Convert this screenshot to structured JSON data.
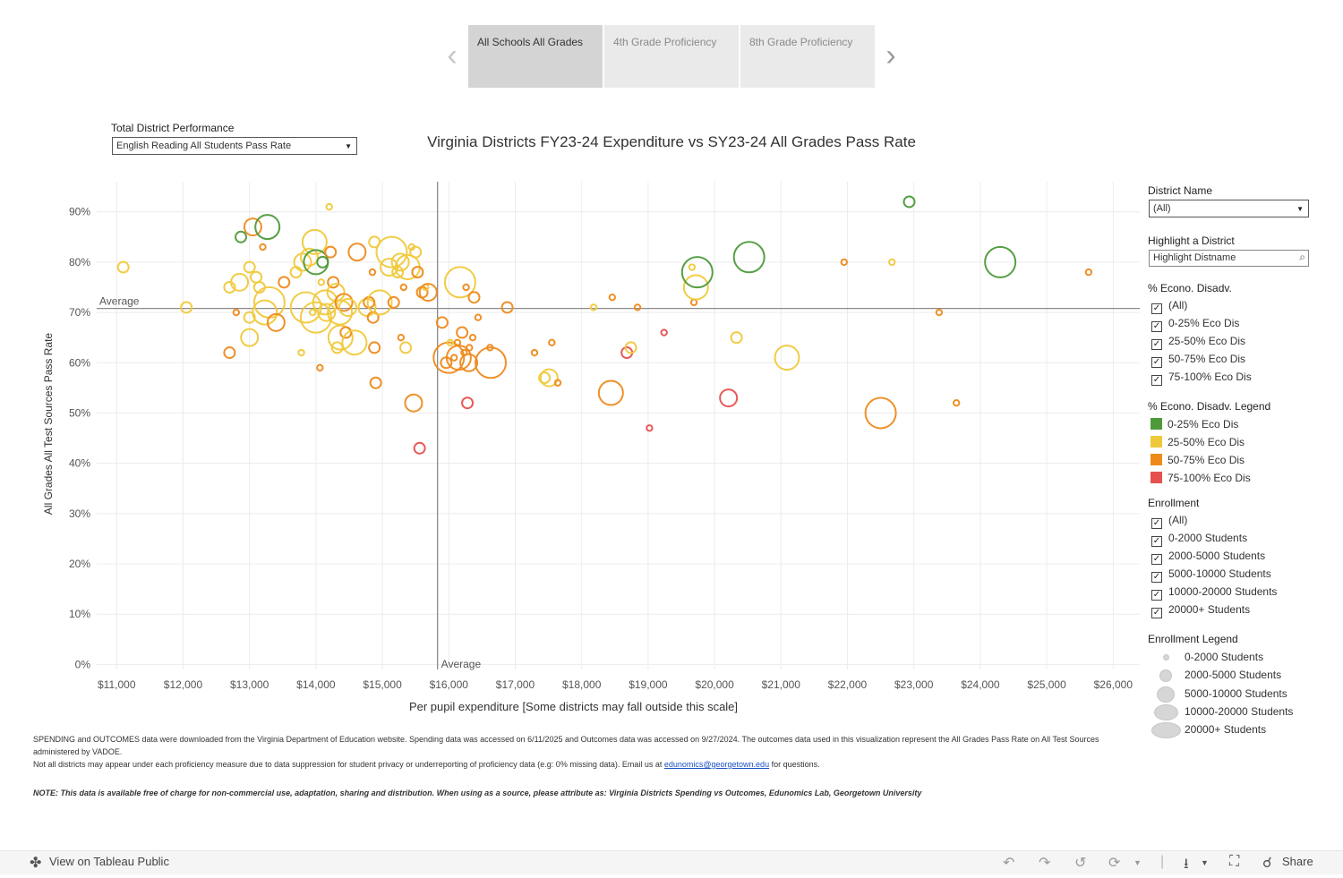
{
  "story": {
    "tabs": [
      "All Schools All Grades",
      "4th Grade Proficiency",
      "8th Grade Proficiency"
    ],
    "active_index": 0,
    "prev_icon": "chevron-left-icon",
    "next_icon": "chevron-right-icon"
  },
  "controls": {
    "performance_label": "Total District Performance",
    "performance_value": "English Reading All Students Pass Rate",
    "district_label": "District Name",
    "district_value": "(All)",
    "highlight_label": "Highlight a District",
    "highlight_placeholder": "Highlight Distname"
  },
  "eco_filter": {
    "title": "% Econo. Disadv.",
    "options": [
      "(All)",
      "0-25% Eco Dis",
      "25-50% Eco Dis",
      "50-75% Eco Dis",
      "75-100% Eco Dis"
    ]
  },
  "eco_legend": {
    "title": "% Econo. Disadv. Legend",
    "items": [
      {
        "label": "0-25% Eco Dis",
        "color": "#4e9a3b"
      },
      {
        "label": "25-50% Eco Dis",
        "color": "#f0c93b"
      },
      {
        "label": "50-75% Eco Dis",
        "color": "#ee8a1c"
      },
      {
        "label": "75-100% Eco Dis",
        "color": "#e6514f"
      }
    ]
  },
  "enrollment_filter": {
    "title": "Enrollment",
    "options": [
      "(All)",
      "0-2000 Students",
      "2000-5000 Students",
      "5000-10000 Students",
      "10000-20000 Students",
      "20000+ Students"
    ]
  },
  "enrollment_legend": {
    "title": "Enrollment Legend",
    "items": [
      "0-2000 Students",
      "2000-5000 Students",
      "5000-10000 Students",
      "10000-20000 Students",
      "20000+ Students"
    ]
  },
  "chart_data": {
    "type": "scatter",
    "title": "Virginia Districts FY23-24 Expenditure vs SY23-24 All Grades Pass Rate",
    "xlabel": "Per pupil expenditure [Some districts may fall outside this scale]",
    "ylabel": "All Grades All Test Sources Pass Rate",
    "xlim": [
      10700,
      26400
    ],
    "ylim": [
      -1,
      96
    ],
    "x_ticks": [
      11000,
      12000,
      13000,
      14000,
      15000,
      16000,
      17000,
      18000,
      19000,
      20000,
      21000,
      22000,
      23000,
      24000,
      25000,
      26000
    ],
    "x_tick_labels": [
      "$11,000",
      "$12,000",
      "$13,000",
      "$14,000",
      "$15,000",
      "$16,000",
      "$17,000",
      "$18,000",
      "$19,000",
      "$20,000",
      "$21,000",
      "$22,000",
      "$23,000",
      "$24,000",
      "$25,000",
      "$26,000"
    ],
    "y_ticks": [
      0,
      10,
      20,
      30,
      40,
      50,
      60,
      70,
      80,
      90
    ],
    "y_tick_labels": [
      "0%",
      "10%",
      "20%",
      "30%",
      "40%",
      "50%",
      "60%",
      "70%",
      "80%",
      "90%"
    ],
    "avg_x": 15830,
    "avg_y": 70.8,
    "avg_label": "Average",
    "grid": true,
    "categories": [
      "0-25% Eco Dis",
      "25-50% Eco Dis",
      "50-75% Eco Dis",
      "75-100% Eco Dis"
    ],
    "points": [
      {
        "x": 11100,
        "y": 79,
        "cat": 1,
        "size": 1
      },
      {
        "x": 12050,
        "y": 71,
        "cat": 1,
        "size": 1
      },
      {
        "x": 12700,
        "y": 75,
        "cat": 1,
        "size": 1
      },
      {
        "x": 12700,
        "y": 62,
        "cat": 2,
        "size": 1
      },
      {
        "x": 12800,
        "y": 70,
        "cat": 2,
        "size": 0
      },
      {
        "x": 12850,
        "y": 76,
        "cat": 1,
        "size": 2
      },
      {
        "x": 12870,
        "y": 85,
        "cat": 0,
        "size": 1
      },
      {
        "x": 13000,
        "y": 79,
        "cat": 1,
        "size": 1
      },
      {
        "x": 13000,
        "y": 65,
        "cat": 1,
        "size": 2
      },
      {
        "x": 13000,
        "y": 69,
        "cat": 1,
        "size": 1
      },
      {
        "x": 13050,
        "y": 87,
        "cat": 2,
        "size": 2
      },
      {
        "x": 13100,
        "y": 77,
        "cat": 1,
        "size": 1
      },
      {
        "x": 13150,
        "y": 75,
        "cat": 1,
        "size": 1
      },
      {
        "x": 13200,
        "y": 83,
        "cat": 2,
        "size": 0
      },
      {
        "x": 13230,
        "y": 70,
        "cat": 1,
        "size": 3
      },
      {
        "x": 13270,
        "y": 87,
        "cat": 0,
        "size": 3
      },
      {
        "x": 13300,
        "y": 72,
        "cat": 1,
        "size": 4
      },
      {
        "x": 13400,
        "y": 68,
        "cat": 2,
        "size": 2
      },
      {
        "x": 13520,
        "y": 76,
        "cat": 2,
        "size": 1
      },
      {
        "x": 13700,
        "y": 78,
        "cat": 1,
        "size": 1
      },
      {
        "x": 13780,
        "y": 62,
        "cat": 1,
        "size": 0
      },
      {
        "x": 13800,
        "y": 80,
        "cat": 1,
        "size": 2
      },
      {
        "x": 13850,
        "y": 71,
        "cat": 1,
        "size": 4
      },
      {
        "x": 13900,
        "y": 81,
        "cat": 1,
        "size": 2
      },
      {
        "x": 13950,
        "y": 70,
        "cat": 1,
        "size": 0
      },
      {
        "x": 13980,
        "y": 84,
        "cat": 1,
        "size": 3
      },
      {
        "x": 14000,
        "y": 80,
        "cat": 0,
        "size": 3
      },
      {
        "x": 14000,
        "y": 69,
        "cat": 1,
        "size": 4
      },
      {
        "x": 14060,
        "y": 59,
        "cat": 2,
        "size": 0
      },
      {
        "x": 14080,
        "y": 76,
        "cat": 1,
        "size": 0
      },
      {
        "x": 14100,
        "y": 80,
        "cat": 0,
        "size": 1
      },
      {
        "x": 14140,
        "y": 72,
        "cat": 1,
        "size": 3
      },
      {
        "x": 14160,
        "y": 70,
        "cat": 1,
        "size": 2
      },
      {
        "x": 14200,
        "y": 91,
        "cat": 1,
        "size": 0
      },
      {
        "x": 14220,
        "y": 82,
        "cat": 2,
        "size": 1
      },
      {
        "x": 14260,
        "y": 76,
        "cat": 2,
        "size": 1
      },
      {
        "x": 14300,
        "y": 74,
        "cat": 1,
        "size": 2
      },
      {
        "x": 14320,
        "y": 63,
        "cat": 1,
        "size": 1
      },
      {
        "x": 14360,
        "y": 70,
        "cat": 1,
        "size": 3
      },
      {
        "x": 14370,
        "y": 65,
        "cat": 1,
        "size": 3
      },
      {
        "x": 14420,
        "y": 72,
        "cat": 2,
        "size": 2
      },
      {
        "x": 14450,
        "y": 66,
        "cat": 2,
        "size": 1
      },
      {
        "x": 14480,
        "y": 71,
        "cat": 1,
        "size": 2
      },
      {
        "x": 14580,
        "y": 64,
        "cat": 1,
        "size": 3
      },
      {
        "x": 14620,
        "y": 82,
        "cat": 2,
        "size": 2
      },
      {
        "x": 14770,
        "y": 71,
        "cat": 1,
        "size": 2
      },
      {
        "x": 14800,
        "y": 72,
        "cat": 2,
        "size": 1
      },
      {
        "x": 14850,
        "y": 78,
        "cat": 2,
        "size": 0
      },
      {
        "x": 14860,
        "y": 69,
        "cat": 2,
        "size": 1
      },
      {
        "x": 14880,
        "y": 84,
        "cat": 1,
        "size": 1
      },
      {
        "x": 14880,
        "y": 63,
        "cat": 2,
        "size": 1
      },
      {
        "x": 14900,
        "y": 56,
        "cat": 2,
        "size": 1
      },
      {
        "x": 14960,
        "y": 72,
        "cat": 1,
        "size": 3
      },
      {
        "x": 15100,
        "y": 79,
        "cat": 1,
        "size": 2
      },
      {
        "x": 15140,
        "y": 82,
        "cat": 1,
        "size": 4
      },
      {
        "x": 15170,
        "y": 72,
        "cat": 2,
        "size": 1
      },
      {
        "x": 15230,
        "y": 78,
        "cat": 1,
        "size": 1
      },
      {
        "x": 15270,
        "y": 80,
        "cat": 1,
        "size": 2
      },
      {
        "x": 15280,
        "y": 65,
        "cat": 2,
        "size": 0
      },
      {
        "x": 15320,
        "y": 75,
        "cat": 2,
        "size": 0
      },
      {
        "x": 15350,
        "y": 63,
        "cat": 1,
        "size": 1
      },
      {
        "x": 15380,
        "y": 79,
        "cat": 1,
        "size": 3
      },
      {
        "x": 15440,
        "y": 83,
        "cat": 1,
        "size": 0
      },
      {
        "x": 15470,
        "y": 52,
        "cat": 2,
        "size": 2
      },
      {
        "x": 15500,
        "y": 82,
        "cat": 1,
        "size": 1
      },
      {
        "x": 15530,
        "y": 78,
        "cat": 2,
        "size": 1
      },
      {
        "x": 15560,
        "y": 43,
        "cat": 3,
        "size": 1
      },
      {
        "x": 15600,
        "y": 74,
        "cat": 2,
        "size": 1
      },
      {
        "x": 15650,
        "y": 75,
        "cat": 1,
        "size": 0
      },
      {
        "x": 15690,
        "y": 74,
        "cat": 2,
        "size": 2
      },
      {
        "x": 15900,
        "y": 68,
        "cat": 2,
        "size": 1
      },
      {
        "x": 15960,
        "y": 60,
        "cat": 2,
        "size": 1
      },
      {
        "x": 16000,
        "y": 61,
        "cat": 2,
        "size": 4
      },
      {
        "x": 16020,
        "y": 64,
        "cat": 1,
        "size": 0
      },
      {
        "x": 16080,
        "y": 61,
        "cat": 2,
        "size": 0
      },
      {
        "x": 16130,
        "y": 64,
        "cat": 2,
        "size": 0
      },
      {
        "x": 16150,
        "y": 61,
        "cat": 2,
        "size": 3
      },
      {
        "x": 16170,
        "y": 76,
        "cat": 1,
        "size": 4
      },
      {
        "x": 16200,
        "y": 66,
        "cat": 2,
        "size": 1
      },
      {
        "x": 16230,
        "y": 62,
        "cat": 2,
        "size": 0
      },
      {
        "x": 16260,
        "y": 75,
        "cat": 2,
        "size": 0
      },
      {
        "x": 16280,
        "y": 52,
        "cat": 3,
        "size": 1
      },
      {
        "x": 16300,
        "y": 60,
        "cat": 2,
        "size": 2
      },
      {
        "x": 16310,
        "y": 63,
        "cat": 2,
        "size": 0
      },
      {
        "x": 16360,
        "y": 65,
        "cat": 2,
        "size": 0
      },
      {
        "x": 16380,
        "y": 73,
        "cat": 2,
        "size": 1
      },
      {
        "x": 16440,
        "y": 69,
        "cat": 2,
        "size": 0
      },
      {
        "x": 16620,
        "y": 63,
        "cat": 2,
        "size": 0
      },
      {
        "x": 16630,
        "y": 60,
        "cat": 2,
        "size": 4
      },
      {
        "x": 16880,
        "y": 71,
        "cat": 2,
        "size": 1
      },
      {
        "x": 17290,
        "y": 62,
        "cat": 2,
        "size": 0
      },
      {
        "x": 17440,
        "y": 57,
        "cat": 1,
        "size": 1
      },
      {
        "x": 17510,
        "y": 57,
        "cat": 1,
        "size": 2
      },
      {
        "x": 17550,
        "y": 64,
        "cat": 2,
        "size": 0
      },
      {
        "x": 17640,
        "y": 56,
        "cat": 2,
        "size": 0
      },
      {
        "x": 18180,
        "y": 71,
        "cat": 1,
        "size": 0
      },
      {
        "x": 18440,
        "y": 54,
        "cat": 2,
        "size": 3
      },
      {
        "x": 18460,
        "y": 73,
        "cat": 2,
        "size": 0
      },
      {
        "x": 18680,
        "y": 62,
        "cat": 3,
        "size": 1
      },
      {
        "x": 18740,
        "y": 63,
        "cat": 1,
        "size": 1
      },
      {
        "x": 18840,
        "y": 71,
        "cat": 2,
        "size": 0
      },
      {
        "x": 19020,
        "y": 47,
        "cat": 3,
        "size": 0
      },
      {
        "x": 19240,
        "y": 66,
        "cat": 3,
        "size": 0
      },
      {
        "x": 19660,
        "y": 79,
        "cat": 1,
        "size": 0
      },
      {
        "x": 19690,
        "y": 72,
        "cat": 2,
        "size": 0
      },
      {
        "x": 19720,
        "y": 75,
        "cat": 1,
        "size": 3
      },
      {
        "x": 19740,
        "y": 78,
        "cat": 0,
        "size": 4
      },
      {
        "x": 20210,
        "y": 53,
        "cat": 3,
        "size": 2
      },
      {
        "x": 20330,
        "y": 65,
        "cat": 1,
        "size": 1
      },
      {
        "x": 20520,
        "y": 81,
        "cat": 0,
        "size": 4
      },
      {
        "x": 21090,
        "y": 61,
        "cat": 1,
        "size": 3
      },
      {
        "x": 21950,
        "y": 80,
        "cat": 2,
        "size": 0
      },
      {
        "x": 22500,
        "y": 50,
        "cat": 2,
        "size": 4
      },
      {
        "x": 22670,
        "y": 80,
        "cat": 1,
        "size": 0
      },
      {
        "x": 22930,
        "y": 92,
        "cat": 0,
        "size": 1
      },
      {
        "x": 23380,
        "y": 70,
        "cat": 2,
        "size": 0
      },
      {
        "x": 23640,
        "y": 52,
        "cat": 2,
        "size": 0
      },
      {
        "x": 24300,
        "y": 80,
        "cat": 0,
        "size": 4
      },
      {
        "x": 25630,
        "y": 78,
        "cat": 2,
        "size": 0
      }
    ]
  },
  "footer": {
    "line1": "SPENDING and OUTCOMES data were downloaded from the Virginia Department of Education website. Spending data was accessed on 6/11/2025 and Outcomes data was accessed on 9/27/2024. The outcomes data used in this visualization represent the All Grades Pass Rate on All Test Sources administered by VADOE.",
    "line2_pre": "Not all districts may appear under each proficiency measure due to data suppression for student privacy or underreporting of proficiency data (e.g: 0% missing data). Email us at ",
    "line2_email": "edunomics@georgetown.edu",
    "line2_post": " for questions.",
    "note": "NOTE: This data is available free of charge for non-commercial use, adaptation, sharing and distribution. When using as a source, please attribute as: Virginia Districts Spending vs Outcomes, Edunomics Lab, Georgetown University"
  },
  "toolbar": {
    "view_label": "View on Tableau Public",
    "share_label": "Share"
  }
}
